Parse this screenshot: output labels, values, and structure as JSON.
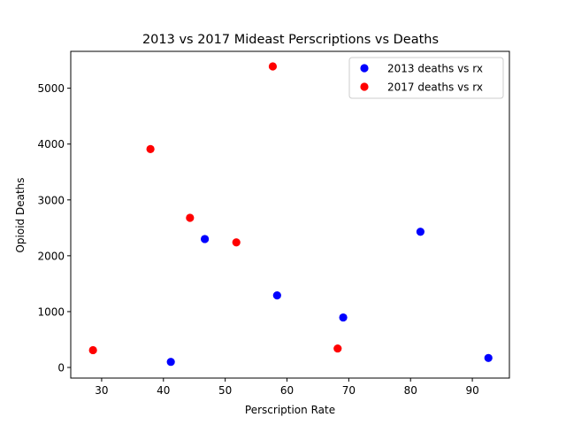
{
  "chart_data": {
    "type": "scatter",
    "title": "2013 vs 2017 Mideast Perscriptions vs Deaths",
    "xlabel": "Perscription Rate",
    "ylabel": "Opioid Deaths",
    "xlim": [
      25,
      96
    ],
    "ylim": [
      -190,
      5660
    ],
    "xticks": [
      30,
      40,
      50,
      60,
      70,
      80,
      90
    ],
    "yticks": [
      0,
      1000,
      2000,
      3000,
      4000,
      5000
    ],
    "grid": false,
    "legend_position": "top-right",
    "series": [
      {
        "name": "2013 deaths vs rx",
        "color": "#0000ff",
        "points": [
          {
            "x": 41.2,
            "y": 100
          },
          {
            "x": 46.7,
            "y": 2300
          },
          {
            "x": 58.4,
            "y": 1290
          },
          {
            "x": 69.1,
            "y": 895
          },
          {
            "x": 81.6,
            "y": 2430
          },
          {
            "x": 92.6,
            "y": 170
          }
        ]
      },
      {
        "name": "2017 deaths vs rx",
        "color": "#ff0000",
        "points": [
          {
            "x": 28.6,
            "y": 310
          },
          {
            "x": 37.9,
            "y": 3910
          },
          {
            "x": 44.3,
            "y": 2680
          },
          {
            "x": 51.8,
            "y": 2240
          },
          {
            "x": 57.7,
            "y": 5390
          },
          {
            "x": 68.2,
            "y": 340
          }
        ]
      }
    ]
  }
}
